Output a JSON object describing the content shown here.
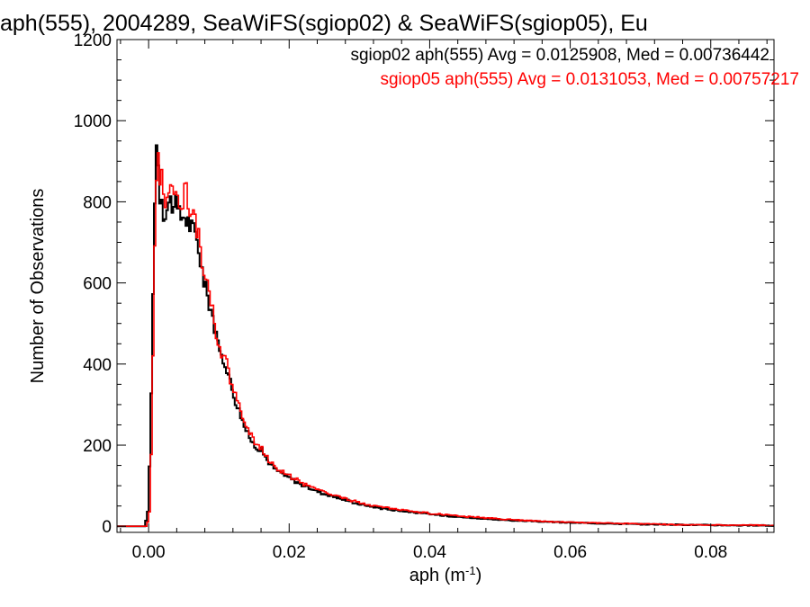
{
  "chart_data": {
    "type": "histogram",
    "title": "aph(555), 2004289, SeaWiFS(sgiop02) & SeaWiFS(sgiop05), Eu",
    "xlabel": "aph (m",
    "xlabel_sup": "-1",
    "xlabel_close": ")",
    "ylabel": "Number of Observations",
    "xlim": [
      -0.0045,
      0.089
    ],
    "ylim": [
      -15,
      1200
    ],
    "x_ticks": [
      "0.00",
      "0.02",
      "0.04",
      "0.06",
      "0.08"
    ],
    "x_tick_values": [
      0.0,
      0.02,
      0.04,
      0.06,
      0.08
    ],
    "y_ticks": [
      "0",
      "200",
      "400",
      "600",
      "800",
      "1000",
      "1200"
    ],
    "y_tick_values": [
      0,
      200,
      400,
      600,
      800,
      1000,
      1200
    ],
    "grid": false,
    "annotations": [
      {
        "text": "sgiop02 aph(555) Avg = 0.0125908, Med = 0.00736442",
        "color": "#000000"
      },
      {
        "text": "sgiop05 aph(555) Avg = 0.0131053, Med = 0.00757217",
        "color": "#ff0000"
      }
    ],
    "series": [
      {
        "color": "#000000",
        "key_points": [
          [
            -0.0045,
            0
          ],
          [
            -0.0005,
            0
          ],
          [
            0.0,
            50
          ],
          [
            0.0004,
            350
          ],
          [
            0.0006,
            540
          ],
          [
            0.0008,
            760
          ],
          [
            0.001,
            920
          ],
          [
            0.0012,
            965
          ],
          [
            0.0014,
            880
          ],
          [
            0.0016,
            820
          ],
          [
            0.0018,
            830
          ],
          [
            0.002,
            800
          ],
          [
            0.0022,
            770
          ],
          [
            0.0025,
            780
          ],
          [
            0.003,
            800
          ],
          [
            0.0035,
            800
          ],
          [
            0.0045,
            760
          ],
          [
            0.005,
            770
          ],
          [
            0.006,
            740
          ],
          [
            0.007,
            700
          ],
          [
            0.008,
            590
          ],
          [
            0.009,
            530
          ],
          [
            0.01,
            430
          ],
          [
            0.011,
            400
          ],
          [
            0.012,
            330
          ],
          [
            0.013,
            280
          ],
          [
            0.014,
            230
          ],
          [
            0.015,
            200
          ],
          [
            0.016,
            190
          ],
          [
            0.017,
            160
          ],
          [
            0.018,
            140
          ],
          [
            0.02,
            120
          ],
          [
            0.022,
            100
          ],
          [
            0.025,
            80
          ],
          [
            0.028,
            65
          ],
          [
            0.03,
            55
          ],
          [
            0.033,
            45
          ],
          [
            0.036,
            38
          ],
          [
            0.04,
            30
          ],
          [
            0.045,
            22
          ],
          [
            0.05,
            16
          ],
          [
            0.055,
            12
          ],
          [
            0.06,
            9
          ],
          [
            0.065,
            7
          ],
          [
            0.07,
            5
          ],
          [
            0.075,
            4
          ],
          [
            0.08,
            3
          ],
          [
            0.085,
            2
          ],
          [
            0.089,
            2
          ]
        ]
      },
      {
        "color": "#ff0000",
        "key_points": [
          [
            -0.0045,
            0
          ],
          [
            -0.0004,
            0
          ],
          [
            0.0001,
            20
          ],
          [
            0.0005,
            250
          ],
          [
            0.0007,
            520
          ],
          [
            0.0009,
            740
          ],
          [
            0.0011,
            880
          ],
          [
            0.0013,
            920
          ],
          [
            0.0016,
            870
          ],
          [
            0.0018,
            890
          ],
          [
            0.002,
            850
          ],
          [
            0.0022,
            800
          ],
          [
            0.0025,
            820
          ],
          [
            0.003,
            840
          ],
          [
            0.0035,
            830
          ],
          [
            0.004,
            800
          ],
          [
            0.005,
            810
          ],
          [
            0.0055,
            825
          ],
          [
            0.006,
            780
          ],
          [
            0.007,
            730
          ],
          [
            0.008,
            610
          ],
          [
            0.009,
            540
          ],
          [
            0.01,
            440
          ],
          [
            0.011,
            410
          ],
          [
            0.012,
            340
          ],
          [
            0.013,
            290
          ],
          [
            0.014,
            240
          ],
          [
            0.015,
            210
          ],
          [
            0.016,
            195
          ],
          [
            0.017,
            165
          ],
          [
            0.018,
            145
          ],
          [
            0.02,
            125
          ],
          [
            0.022,
            105
          ],
          [
            0.025,
            85
          ],
          [
            0.028,
            68
          ],
          [
            0.03,
            58
          ],
          [
            0.033,
            48
          ],
          [
            0.036,
            40
          ],
          [
            0.04,
            32
          ],
          [
            0.045,
            24
          ],
          [
            0.05,
            18
          ],
          [
            0.055,
            13
          ],
          [
            0.06,
            10
          ],
          [
            0.065,
            8
          ],
          [
            0.07,
            6
          ],
          [
            0.075,
            4
          ],
          [
            0.08,
            3
          ],
          [
            0.085,
            3
          ],
          [
            0.089,
            2
          ]
        ]
      }
    ]
  }
}
